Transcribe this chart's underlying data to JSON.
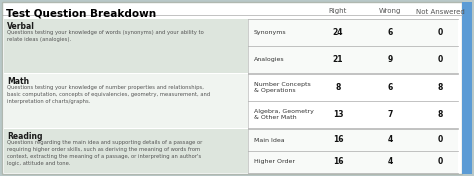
{
  "title": "Test Question Breakdown",
  "sections": [
    {
      "section_name": "Verbal",
      "section_desc": "Questions testing your knowledge of words (synonyms) and your ability to\nrelate ideas (analogies).",
      "bg_color": "#dde5dd",
      "rows": [
        {
          "label": "Synonyms",
          "right": "24",
          "wrong": "6",
          "not_answered": "0"
        },
        {
          "label": "Analogies",
          "right": "21",
          "wrong": "9",
          "not_answered": "0"
        }
      ]
    },
    {
      "section_name": "Math",
      "section_desc": "Questions testing your knowledge of number properties and relationships,\nbasic computation, concepts of equivalencies, geometry, measurement, and\ninterpretation of charts/graphs.",
      "bg_color": "#f0f4f0",
      "rows": [
        {
          "label": "Number Concepts\n& Operations",
          "right": "8",
          "wrong": "6",
          "not_answered": "8"
        },
        {
          "label": "Algebra, Geometry\n& Other Math",
          "right": "13",
          "wrong": "7",
          "not_answered": "8"
        }
      ]
    },
    {
      "section_name": "Reading",
      "section_desc": "Questions regarding the main idea and supporting details of a passage or\nrequiring higher order skills, such as deriving the meaning of words from\ncontext, extracting the meaning of a passage, or interpreting an author's\nlogic, attitude and tone.",
      "bg_color": "#dde5dd",
      "rows": [
        {
          "label": "Main Idea",
          "right": "16",
          "wrong": "4",
          "not_answered": "0"
        },
        {
          "label": "Higher Order",
          "right": "16",
          "wrong": "4",
          "not_answered": "0"
        }
      ]
    }
  ],
  "outer_border_color": "#b0b8b0",
  "section_name_color": "#1a1a1a",
  "header_color": "#555555",
  "value_color": "#111111",
  "label_color": "#333333",
  "desc_color": "#555555",
  "right_accent_color": "#5b9bd5",
  "header_bg": "#f5f5f5",
  "table_bg": "#f5f5f5",
  "outer_bg": "#b8c8c8"
}
